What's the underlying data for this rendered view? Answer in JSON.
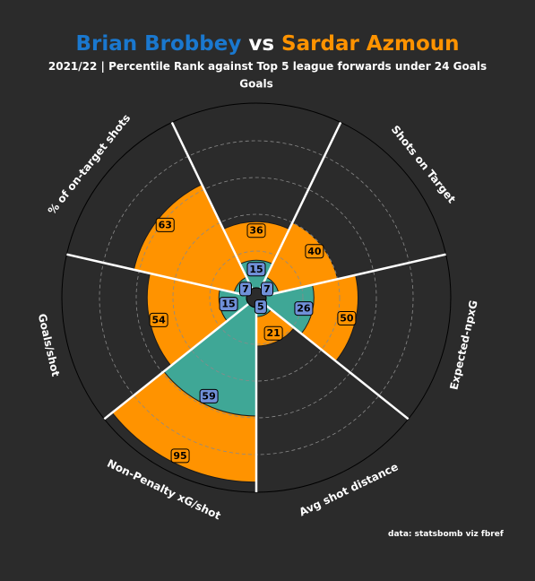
{
  "header": {
    "player1": "Brian Brobbey",
    "vs": "vs",
    "player2": "Sardar Azmoun",
    "subtitle": "2021/22 | Percentile Rank against Top 5 league forwards under 24 Goals"
  },
  "footnote": "data: statsbomb viz fbref",
  "colors": {
    "background": "#2b2b2b",
    "player1": "#1a78cf",
    "player2": "#ff9300",
    "teal_area": "#3fa796",
    "orange_area": "#ff9300",
    "label1_box": "#7090d8",
    "label2_box": "#ff9300"
  },
  "chart_data": {
    "type": "polar_bar",
    "range": [
      0,
      100
    ],
    "categories": [
      "Goals",
      "Shots on Target",
      "Expected-npxG",
      "Avg shot distance",
      "Non-Penalty xG/shot",
      "Goals/shot",
      "% of on-target shots"
    ],
    "series": [
      {
        "name": "Brian Brobbey",
        "values": [
          15,
          7,
          26,
          5,
          59,
          15,
          7
        ]
      },
      {
        "name": "Sardar Azmoun",
        "values": [
          36,
          40,
          50,
          21,
          95,
          54,
          63
        ]
      }
    ]
  }
}
